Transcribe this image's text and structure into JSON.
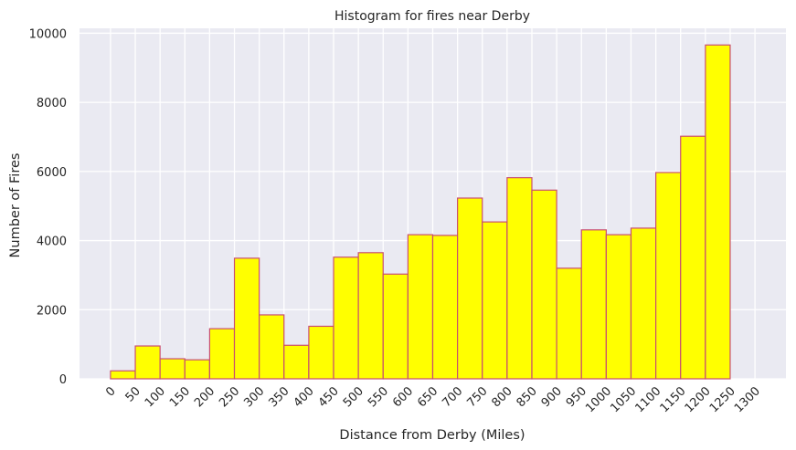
{
  "chart_data": {
    "type": "bar",
    "title": "Histogram for fires near Derby",
    "xlabel": "Distance from Derby (Miles)",
    "ylabel": "Number of Fires",
    "bin_edges": [
      0,
      50,
      100,
      150,
      200,
      250,
      300,
      350,
      400,
      450,
      500,
      550,
      600,
      650,
      700,
      750,
      800,
      850,
      900,
      950,
      1000,
      1050,
      1100,
      1150,
      1200,
      1250
    ],
    "values": [
      230,
      950,
      580,
      550,
      1450,
      3490,
      1850,
      970,
      1520,
      3520,
      3650,
      3030,
      4170,
      4150,
      5230,
      4540,
      5820,
      5460,
      3200,
      4310,
      4170,
      4360,
      5970,
      7020,
      9660
    ],
    "xticks": [
      "0",
      "50",
      "100",
      "150",
      "200",
      "250",
      "300",
      "350",
      "400",
      "450",
      "500",
      "550",
      "600",
      "650",
      "700",
      "750",
      "800",
      "850",
      "900",
      "950",
      "1000",
      "1050",
      "1100",
      "1150",
      "1200",
      "1250",
      "1300"
    ],
    "yticks": [
      "0",
      "2000",
      "4000",
      "6000",
      "8000",
      "10000"
    ],
    "xlim": [
      -62.5,
      1362.5
    ],
    "ylim": [
      0,
      10143
    ],
    "bar_fill": "#ffff00",
    "bar_edge": "#c84e70",
    "background": "#eaeaf2",
    "grid": true
  }
}
